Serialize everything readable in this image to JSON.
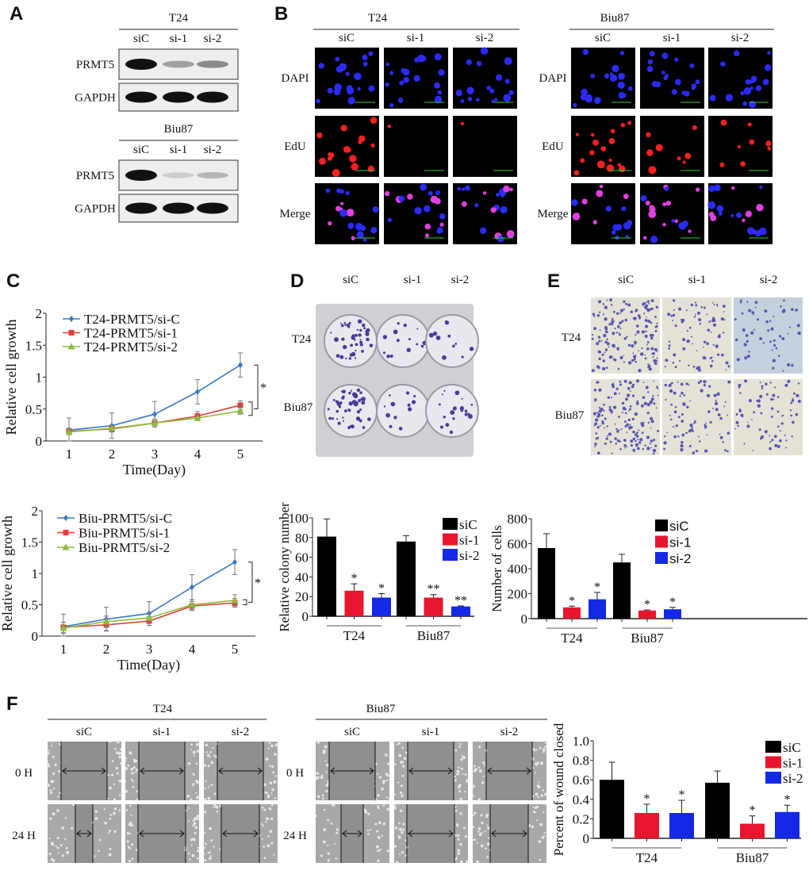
{
  "panels": {
    "A": "A",
    "B": "B",
    "C": "C",
    "D": "D",
    "E": "E",
    "F": "F"
  },
  "blot": {
    "t24": {
      "title": "T24",
      "lanes": [
        "siC",
        "si-1",
        "si-2"
      ],
      "rows": [
        "PRMT5",
        "GAPDH"
      ]
    },
    "biu87": {
      "title": "Biu87",
      "lanes": [
        "siC",
        "si-1",
        "si-2"
      ],
      "rows": [
        "PRMT5",
        "GAPDH"
      ]
    }
  },
  "edu": {
    "t24": {
      "title": "T24",
      "lanes": [
        "siC",
        "si-1",
        "si-2"
      ]
    },
    "biu87": {
      "title": "Biu87",
      "lanes": [
        "siC",
        "si-1",
        "si-2"
      ]
    },
    "rows": [
      "DAPI",
      "EdU",
      "Merge"
    ]
  },
  "colony": {
    "lanes": [
      "siC",
      "si-1",
      "si-2"
    ],
    "rows": [
      "T24",
      "Biu87"
    ]
  },
  "transwell": {
    "lanes": [
      "siC",
      "si-1",
      "si-2"
    ],
    "rows": [
      "T24",
      "Biu87"
    ]
  },
  "wound": {
    "t24": {
      "title": "T24",
      "lanes": [
        "siC",
        "si-1",
        "si-2"
      ]
    },
    "biu87": {
      "title": "Biu87",
      "lanes": [
        "siC",
        "si-1",
        "si-2"
      ]
    },
    "rows": [
      "0 H",
      "24 H"
    ]
  },
  "colors": {
    "siC_line": "#3b78c4",
    "si1_line": "#d9413a",
    "si2_line": "#8dbb3f",
    "bar_siC": "#000000",
    "bar_si1": "#e8152e",
    "bar_si2": "#1428e6"
  },
  "chart_data": [
    {
      "type": "line",
      "panel": "C",
      "xlabel": "Time(Day)",
      "ylabel": "Relative cell growth",
      "x": [
        1,
        2,
        3,
        4,
        5
      ],
      "ylim": [
        0,
        2
      ],
      "yticks": [
        "0",
        "0.5",
        "1",
        "1.5",
        "2"
      ],
      "yticks_values": [
        0,
        0.5,
        1,
        1.5,
        2
      ],
      "significance": "*",
      "legend": "top-left",
      "series": [
        {
          "name": "T24-PRMT5/si-C",
          "values": [
            0.17,
            0.24,
            0.42,
            0.77,
            1.19
          ],
          "err": [
            0.19,
            0.2,
            0.2,
            0.19,
            0.19
          ],
          "marker": "diamond"
        },
        {
          "name": "T24-PRMT5/si-1",
          "values": [
            0.15,
            0.19,
            0.28,
            0.39,
            0.56
          ],
          "err": [
            0.05,
            0.05,
            0.06,
            0.07,
            0.07
          ],
          "marker": "square"
        },
        {
          "name": "T24-PRMT5/si-2",
          "values": [
            0.14,
            0.2,
            0.28,
            0.36,
            0.47
          ],
          "err": [
            0.04,
            0.05,
            0.06,
            0.04,
            0.05
          ],
          "marker": "triangle"
        }
      ]
    },
    {
      "type": "line",
      "panel": "C",
      "xlabel": "Time(Day)",
      "ylabel": "Relative cell growth",
      "x": [
        1,
        2,
        3,
        4,
        5
      ],
      "ylim": [
        0,
        2
      ],
      "yticks": [
        "0",
        "0.5",
        "1",
        "1.5",
        "2"
      ],
      "yticks_values": [
        0,
        0.5,
        1,
        1.5,
        2
      ],
      "significance": "*",
      "legend": "top-left",
      "series": [
        {
          "name": "Biu-PRMT5/si-C",
          "values": [
            0.15,
            0.27,
            0.36,
            0.78,
            1.18
          ],
          "err": [
            0.2,
            0.19,
            0.19,
            0.2,
            0.2
          ],
          "marker": "diamond"
        },
        {
          "name": "Biu-PRMT5/si-1",
          "values": [
            0.14,
            0.18,
            0.24,
            0.48,
            0.53
          ],
          "err": [
            0.08,
            0.09,
            0.07,
            0.07,
            0.07
          ],
          "marker": "square"
        },
        {
          "name": "Biu-PRMT5/si-2",
          "values": [
            0.13,
            0.23,
            0.29,
            0.5,
            0.57
          ],
          "err": [
            0.09,
            0.09,
            0.08,
            0.08,
            0.09
          ],
          "marker": "triangle"
        }
      ]
    },
    {
      "type": "bar",
      "panel": "D",
      "ylabel": "Relative colony number",
      "ylim": [
        0,
        100
      ],
      "yticks": [
        "0",
        "20",
        "40",
        "60",
        "80",
        "100"
      ],
      "yticks_values": [
        0,
        20,
        40,
        60,
        80,
        100
      ],
      "categories": [
        "T24",
        "Biu87"
      ],
      "legend": "top-right",
      "series": [
        {
          "name": "siC",
          "values": [
            81,
            76
          ],
          "err": [
            18,
            6
          ],
          "sig": [
            "",
            ""
          ]
        },
        {
          "name": "si-1",
          "values": [
            26,
            19
          ],
          "err": [
            7,
            3
          ],
          "sig": [
            "*",
            "**"
          ]
        },
        {
          "name": "si-2",
          "values": [
            19,
            10
          ],
          "err": [
            4,
            0.5
          ],
          "sig": [
            "*",
            "**"
          ]
        }
      ]
    },
    {
      "type": "bar",
      "panel": "E",
      "ylabel": "Number of cells",
      "ylim": [
        0,
        800
      ],
      "yticks": [
        "0",
        "200",
        "400",
        "600",
        "800"
      ],
      "yticks_values": [
        0,
        200,
        400,
        600,
        800
      ],
      "categories": [
        "T24",
        "Biu87"
      ],
      "legend": "top-right",
      "series": [
        {
          "name": "siC",
          "values": [
            565,
            450
          ],
          "err": [
            115,
            65
          ],
          "sig": [
            "",
            ""
          ]
        },
        {
          "name": "si-1",
          "values": [
            90,
            65
          ],
          "err": [
            10,
            5
          ],
          "sig": [
            "*",
            "*"
          ]
        },
        {
          "name": "si-2",
          "values": [
            155,
            75
          ],
          "err": [
            55,
            15
          ],
          "sig": [
            "*",
            "*"
          ]
        }
      ]
    },
    {
      "type": "bar",
      "panel": "F",
      "ylabel": "Percent of wound closed",
      "ylim": [
        0,
        1
      ],
      "yticks": [
        "0",
        "0.2",
        "0.4",
        "0.6",
        "0.8",
        "1.0"
      ],
      "yticks_values": [
        0,
        0.2,
        0.4,
        0.6,
        0.8,
        1.0
      ],
      "categories": [
        "T24",
        "Biu87"
      ],
      "legend": "top-right",
      "series": [
        {
          "name": "siC",
          "values": [
            0.6,
            0.57
          ],
          "err": [
            0.18,
            0.12
          ],
          "sig": [
            "",
            ""
          ]
        },
        {
          "name": "si-1",
          "values": [
            0.26,
            0.15
          ],
          "err": [
            0.09,
            0.08
          ],
          "sig": [
            "*",
            "*"
          ]
        },
        {
          "name": "si-2",
          "values": [
            0.26,
            0.27
          ],
          "err": [
            0.13,
            0.07
          ],
          "sig": [
            "*",
            "*"
          ]
        }
      ]
    }
  ]
}
